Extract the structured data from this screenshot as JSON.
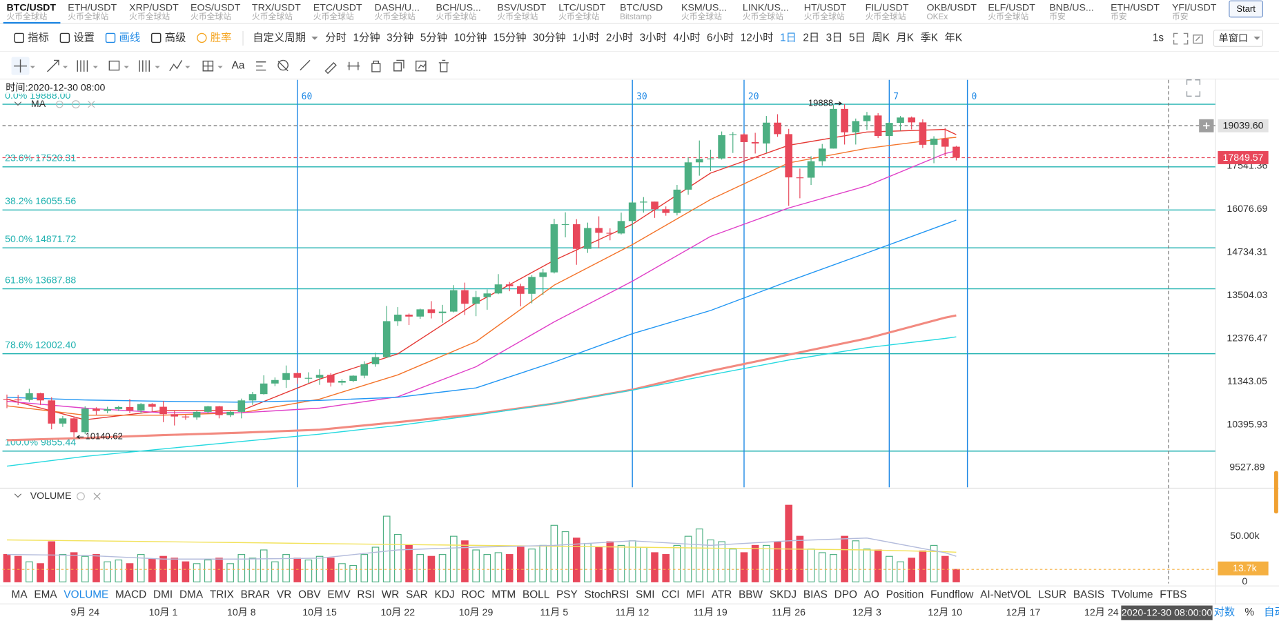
{
  "tabs": [
    {
      "symbol": "BTC/USDT",
      "exchange": "火币全球站"
    },
    {
      "symbol": "ETH/USDT",
      "exchange": "火币全球站"
    },
    {
      "symbol": "XRP/USDT",
      "exchange": "火币全球站"
    },
    {
      "symbol": "EOS/USDT",
      "exchange": "火币全球站"
    },
    {
      "symbol": "TRX/USDT",
      "exchange": "火币全球站"
    },
    {
      "symbol": "ETC/USDT",
      "exchange": "火币全球站"
    },
    {
      "symbol": "DASH/U...",
      "exchange": "火币全球站"
    },
    {
      "symbol": "BCH/US...",
      "exchange": "火币全球站"
    },
    {
      "symbol": "BSV/USDT",
      "exchange": "火币全球站"
    },
    {
      "symbol": "LTC/USDT",
      "exchange": "火币全球站"
    },
    {
      "symbol": "BTC/USD",
      "exchange": "Bitstamp"
    },
    {
      "symbol": "KSM/US...",
      "exchange": "火币全球站"
    },
    {
      "symbol": "LINK/US...",
      "exchange": "火币全球站"
    },
    {
      "symbol": "HT/USDT",
      "exchange": "火币全球站"
    },
    {
      "symbol": "FIL/USDT",
      "exchange": "火币全球站"
    },
    {
      "symbol": "OKB/USDT",
      "exchange": "OKEx"
    },
    {
      "symbol": "ELF/USDT",
      "exchange": "火币全球站"
    },
    {
      "symbol": "BNB/US...",
      "exchange": "币安"
    },
    {
      "symbol": "ETH/USDT",
      "exchange": "币安"
    },
    {
      "symbol": "YFI/USDT",
      "exchange": "币安"
    }
  ],
  "start_button": "Start",
  "toolbar": {
    "tools": [
      {
        "label": "指标"
      },
      {
        "label": "设置"
      },
      {
        "label": "画线",
        "color": "#1e88e5"
      },
      {
        "label": "高级"
      },
      {
        "label": "胜率",
        "color": "#f5a623"
      }
    ],
    "custom_period": "自定义周期",
    "periods": [
      {
        "label": "分时"
      },
      {
        "label": "1分钟"
      },
      {
        "label": "3分钟"
      },
      {
        "label": "5分钟"
      },
      {
        "label": "10分钟"
      },
      {
        "label": "15分钟"
      },
      {
        "label": "30分钟"
      },
      {
        "label": "1小时"
      },
      {
        "label": "2小时"
      },
      {
        "label": "3小时"
      },
      {
        "label": "4小时"
      },
      {
        "label": "6小时"
      },
      {
        "label": "12小时"
      },
      {
        "label": "1日",
        "color": "#1e88e5"
      },
      {
        "label": "2日"
      },
      {
        "label": "3日"
      },
      {
        "label": "5日"
      },
      {
        "label": "周K"
      },
      {
        "label": "月K"
      },
      {
        "label": "季K"
      },
      {
        "label": "年K"
      }
    ],
    "refresh": "1s",
    "window_mode": "单窗口",
    "draw_text_tool": "Aa"
  },
  "chart_data": {
    "type": "candlestick",
    "legend_label": "MA",
    "log": true,
    "colors": {
      "up": "#4caf82",
      "down": "#e8475a"
    },
    "xlim": [
      -0.4,
      108.2
    ],
    "xticks": [
      {
        "value": 7,
        "label": "9月 24"
      },
      {
        "value": 14,
        "label": "10月 1"
      },
      {
        "value": 21,
        "label": "10月 8"
      },
      {
        "value": 28,
        "label": "10月 15"
      },
      {
        "value": 35,
        "label": "10月 22"
      },
      {
        "value": 42,
        "label": "10月 29"
      },
      {
        "value": 49,
        "label": "11月 5"
      },
      {
        "value": 56,
        "label": "11月 12"
      },
      {
        "value": 63,
        "label": "11月 19"
      },
      {
        "value": 70,
        "label": "11月 26"
      },
      {
        "value": 77,
        "label": "12月 3"
      },
      {
        "value": 84,
        "label": "12月 10"
      },
      {
        "value": 91,
        "label": "12月 17"
      },
      {
        "value": 98,
        "label": "12月 24"
      }
    ],
    "ylim": [
      9158,
      20893
    ],
    "yticks": [
      17541.36,
      16076.69,
      14734.31,
      13504.03,
      12376.47,
      11343.05,
      10395.93,
      9527.89
    ],
    "candles": [
      [
        10950,
        11050,
        10750,
        10940
      ],
      [
        10940,
        11040,
        10820,
        10930
      ],
      [
        10930,
        11180,
        10890,
        11080
      ],
      [
        11080,
        11090,
        10820,
        10920
      ],
      [
        10920,
        10990,
        10300,
        10420
      ],
      [
        10420,
        10580,
        10350,
        10530
      ],
      [
        10530,
        10570,
        10140.62,
        10240
      ],
      [
        10240,
        10790,
        10200,
        10740
      ],
      [
        10740,
        10770,
        10600,
        10690
      ],
      [
        10690,
        10780,
        10640,
        10730
      ],
      [
        10730,
        10800,
        10690,
        10775
      ],
      [
        10775,
        10950,
        10640,
        10700
      ],
      [
        10700,
        10860,
        10640,
        10840
      ],
      [
        10840,
        10860,
        10670,
        10780
      ],
      [
        10780,
        10910,
        10450,
        10620
      ],
      [
        10620,
        10690,
        10380,
        10570
      ],
      [
        10570,
        10600,
        10500,
        10550
      ],
      [
        10550,
        10690,
        10500,
        10670
      ],
      [
        10670,
        10800,
        10630,
        10790
      ],
      [
        10790,
        10800,
        10530,
        10600
      ],
      [
        10600,
        10690,
        10560,
        10670
      ],
      [
        10670,
        10960,
        10530,
        10920
      ],
      [
        10920,
        11110,
        10820,
        11060
      ],
      [
        11060,
        11490,
        11050,
        11300
      ],
      [
        11300,
        11440,
        11240,
        11380
      ],
      [
        11380,
        11720,
        11200,
        11540
      ],
      [
        11540,
        11560,
        11290,
        11430
      ],
      [
        11430,
        11560,
        11310,
        11430
      ],
      [
        11430,
        11630,
        11270,
        11500
      ],
      [
        11500,
        11540,
        11230,
        11320
      ],
      [
        11320,
        11400,
        11260,
        11360
      ],
      [
        11360,
        11490,
        11330,
        11480
      ],
      [
        11480,
        11820,
        11420,
        11750
      ],
      [
        11750,
        12030,
        11690,
        11920
      ],
      [
        11920,
        13220,
        11900,
        12820
      ],
      [
        12820,
        13190,
        12700,
        12990
      ],
      [
        12990,
        13020,
        12720,
        12940
      ],
      [
        12940,
        13150,
        12880,
        13130
      ],
      [
        13130,
        13350,
        12890,
        13030
      ],
      [
        13030,
        13250,
        12780,
        13070
      ],
      [
        13070,
        13790,
        13050,
        13650
      ],
      [
        13650,
        13860,
        12980,
        13280
      ],
      [
        13280,
        13630,
        12950,
        13460
      ],
      [
        13460,
        13670,
        13120,
        13560
      ],
      [
        13560,
        14100,
        13540,
        13810
      ],
      [
        13810,
        13880,
        13620,
        13760
      ],
      [
        13760,
        13830,
        13210,
        13550
      ],
      [
        13550,
        14070,
        13290,
        14020
      ],
      [
        14020,
        14250,
        13520,
        14150
      ],
      [
        14150,
        15770,
        14120,
        15600
      ],
      [
        15600,
        15980,
        15190,
        15600
      ],
      [
        15600,
        15760,
        14370,
        14840
      ],
      [
        14840,
        15650,
        14720,
        15480
      ],
      [
        15480,
        15850,
        14860,
        15330
      ],
      [
        15330,
        15470,
        15100,
        15310
      ],
      [
        15310,
        15970,
        15280,
        15700
      ],
      [
        15700,
        16350,
        15460,
        16300
      ],
      [
        16300,
        16480,
        15970,
        16330
      ],
      [
        16330,
        16330,
        15800,
        16080
      ],
      [
        16080,
        16170,
        15870,
        15960
      ],
      [
        15960,
        16890,
        15880,
        16730
      ],
      [
        16730,
        17860,
        16560,
        17680
      ],
      [
        17680,
        18480,
        17210,
        17800
      ],
      [
        17800,
        18140,
        17370,
        17820
      ],
      [
        17820,
        18820,
        17780,
        18680
      ],
      [
        18680,
        18800,
        18020,
        18710
      ],
      [
        18710,
        18750,
        17610,
        18420
      ],
      [
        18420,
        18770,
        18000,
        18370
      ],
      [
        18370,
        19420,
        18030,
        19160
      ],
      [
        19160,
        19490,
        18620,
        18720
      ],
      [
        18720,
        18920,
        16190,
        17150
      ],
      [
        17150,
        17460,
        16440,
        17140
      ],
      [
        17140,
        17900,
        16890,
        17720
      ],
      [
        17720,
        18350,
        17560,
        18180
      ],
      [
        18180,
        19860,
        18180,
        19700
      ],
      [
        19700,
        19888,
        18330,
        18790
      ],
      [
        18790,
        19320,
        18330,
        19220
      ],
      [
        19220,
        19580,
        18880,
        19440
      ],
      [
        19440,
        19530,
        18570,
        18650
      ],
      [
        18650,
        19180,
        18500,
        19150
      ],
      [
        19150,
        19420,
        18850,
        19360
      ],
      [
        19360,
        19400,
        18900,
        19170
      ],
      [
        19170,
        19290,
        18200,
        18320
      ],
      [
        18320,
        18640,
        17650,
        18550
      ],
      [
        18550,
        18950,
        17910,
        18250
      ],
      [
        18250,
        18280,
        17750,
        17849.57
      ]
    ],
    "ma_lines": [
      {
        "color": "#e53935",
        "width": 1.2,
        "x": [
          0,
          7,
          14,
          21,
          28,
          35,
          42,
          49,
          56,
          63,
          70,
          77,
          84,
          85
        ],
        "values": [
          10950,
          10500,
          10700,
          10700,
          11400,
          12000,
          13300,
          14500,
          15600,
          17300,
          18300,
          18800,
          18900,
          18700
        ]
      },
      {
        "color": "#f4742b",
        "width": 1.2,
        "x": [
          0,
          7,
          14,
          21,
          28,
          35,
          42,
          49,
          56,
          63,
          70,
          77,
          84,
          85
        ],
        "values": [
          10800,
          10600,
          10600,
          10650,
          10950,
          11500,
          12300,
          13790,
          14970,
          16400,
          17660,
          18190,
          18560,
          18600
        ]
      },
      {
        "color": "#e040c8",
        "width": 1.2,
        "x": [
          0,
          7,
          14,
          21,
          28,
          35,
          42,
          49,
          56,
          63,
          70,
          77,
          84,
          85
        ],
        "values": [
          10900,
          10750,
          10650,
          10650,
          10750,
          11000,
          11690,
          12800,
          13900,
          15220,
          16120,
          16860,
          18000,
          18100
        ]
      },
      {
        "color": "#2196f3",
        "width": 1.2,
        "x": [
          0,
          7,
          14,
          21,
          28,
          35,
          42,
          49,
          56,
          63,
          70,
          77,
          84,
          85
        ],
        "values": [
          10990,
          10930,
          10900,
          10880,
          10920,
          10990,
          11200,
          11800,
          12500,
          13100,
          13900,
          14720,
          15600,
          15730
        ]
      },
      {
        "color": "#f28a80",
        "width": 2.6,
        "x": [
          0,
          7,
          14,
          21,
          28,
          35,
          42,
          49,
          56,
          63,
          70,
          77,
          84,
          85
        ],
        "values": [
          10075,
          10120,
          10180,
          10230,
          10290,
          10450,
          10620,
          10850,
          11160,
          11590,
          11980,
          12380,
          12910,
          12970
        ]
      },
      {
        "color": "#26d9e0",
        "width": 1.2,
        "x": [
          0,
          7,
          14,
          21,
          28,
          35,
          42,
          49,
          56,
          63,
          70,
          77,
          84,
          85
        ],
        "values": [
          9560,
          9750,
          9900,
          10050,
          10200,
          10380,
          10600,
          10850,
          11150,
          11500,
          11850,
          12150,
          12380,
          12420
        ]
      }
    ],
    "fib_color": "#20b2b0",
    "fib_levels": [
      {
        "value": 19888,
        "label": "0.0% 19888.00"
      },
      {
        "value": 17520.31,
        "label": "23.6% 17520.31"
      },
      {
        "value": 16055.56,
        "label": "38.2% 16055.56"
      },
      {
        "value": 14871.72,
        "label": "50.0% 14871.72"
      },
      {
        "value": 13687.88,
        "label": "61.8% 13687.88"
      },
      {
        "value": 12002.4,
        "label": "78.6% 12002.40"
      },
      {
        "value": 9855.44,
        "label": "100.0% 9855.44"
      }
    ],
    "time_zone_color": "#1e88e5",
    "time_zones": [
      {
        "value": 26,
        "label": "60"
      },
      {
        "value": 56,
        "label": "30"
      },
      {
        "value": 66,
        "label": "20"
      },
      {
        "value": 79,
        "label": "7"
      },
      {
        "value": 86,
        "label": "0"
      }
    ],
    "crosshair": {
      "x": 104,
      "time_text": "时间:2020-12-30 08:00",
      "date_text": "2020-12-30 08:00:00",
      "price": {
        "value": 19039.6,
        "label": "19039.60"
      }
    },
    "volume": {
      "label": "VOLUME",
      "ylim": [
        0,
        101800
      ],
      "yticks": [
        {
          "value": 50000,
          "label": "50.00k"
        },
        0
      ],
      "current_label": "13.7k",
      "values": [
        30000,
        28000,
        22000,
        20000,
        44000,
        30000,
        32000,
        28000,
        30000,
        22000,
        24000,
        20000,
        30000,
        25000,
        28000,
        26000,
        22000,
        20000,
        24000,
        26000,
        20000,
        30000,
        26000,
        35000,
        22000,
        30000,
        26000,
        24000,
        28000,
        26000,
        20000,
        18000,
        30000,
        38000,
        72000,
        52000,
        40000,
        30000,
        28000,
        30000,
        50000,
        45000,
        35000,
        30000,
        32000,
        30000,
        38000,
        36000,
        40000,
        62000,
        55000,
        48000,
        42000,
        38000,
        44000,
        40000,
        45000,
        38000,
        32000,
        30000,
        40000,
        50000,
        58000,
        46000,
        44000,
        36000,
        32000,
        40000,
        40000,
        44000,
        84000,
        50000,
        36000,
        32000,
        30000,
        50000,
        45000,
        36000,
        35000,
        28000,
        22000,
        26000,
        34000,
        40000,
        28000,
        13700
      ],
      "ma_lines": [
        {
          "color": "#f2e25a",
          "width": 1.2,
          "x": [
            0,
            7,
            14,
            21,
            28,
            35,
            42,
            49,
            56,
            63,
            70,
            77,
            84,
            85
          ],
          "values": [
            46000,
            45000,
            44000,
            43000,
            42000,
            41000,
            40000,
            39000,
            38000,
            37000,
            36000,
            35000,
            33000,
            32500
          ]
        },
        {
          "color": "#b4bcdc",
          "width": 1.2,
          "x": [
            0,
            7,
            14,
            21,
            28,
            35,
            42,
            49,
            56,
            63,
            70,
            77,
            84,
            85
          ],
          "values": [
            30000,
            29000,
            25000,
            25000,
            26000,
            35000,
            38000,
            40000,
            45000,
            40000,
            45000,
            48000,
            32000,
            28000
          ]
        }
      ]
    }
  },
  "indicators": [
    {
      "label": "MA"
    },
    {
      "label": "EMA"
    },
    {
      "label": "VOLUME",
      "color": "#1e88e5"
    },
    {
      "label": "MACD"
    },
    {
      "label": "DMI"
    },
    {
      "label": "DMA"
    },
    {
      "label": "TRIX"
    },
    {
      "label": "BRAR"
    },
    {
      "label": "VR"
    },
    {
      "label": "OBV"
    },
    {
      "label": "EMV"
    },
    {
      "label": "RSI"
    },
    {
      "label": "WR"
    },
    {
      "label": "SAR"
    },
    {
      "label": "KDJ"
    },
    {
      "label": "ROC"
    },
    {
      "label": "MTM"
    },
    {
      "label": "BOLL"
    },
    {
      "label": "PSY"
    },
    {
      "label": "StochRSI"
    },
    {
      "label": "SMI"
    },
    {
      "label": "CCI"
    },
    {
      "label": "MFI"
    },
    {
      "label": "ATR"
    },
    {
      "label": "BBW"
    },
    {
      "label": "SKDJ"
    },
    {
      "label": "BIAS"
    },
    {
      "label": "DPO"
    },
    {
      "label": "AO"
    },
    {
      "label": "Position"
    },
    {
      "label": "Fundflow"
    },
    {
      "label": "AI-NetVOL"
    },
    {
      "label": "LSUR"
    },
    {
      "label": "BASIS"
    },
    {
      "label": "TVolume"
    },
    {
      "label": "FTBS"
    }
  ],
  "bottom_options": [
    {
      "label": "对数",
      "color": "#1e88e5"
    },
    {
      "label": "%"
    },
    {
      "label": "自动",
      "color": "#1e88e5"
    }
  ]
}
